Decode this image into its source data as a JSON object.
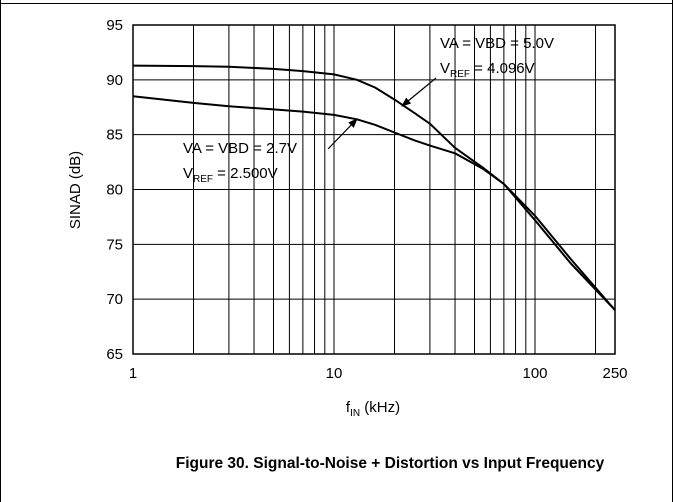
{
  "chart_data": {
    "type": "line",
    "caption": "Figure 30. Signal-to-Noise + Distortion vs Input Frequency",
    "ylabel": "SINAD (dB)",
    "xlabel": {
      "main": "f",
      "sub": "IN",
      "rest": " (kHz)"
    },
    "xscale": "log",
    "xlim": [
      1,
      250
    ],
    "xticks": [
      1,
      10,
      100,
      250
    ],
    "xgrid": [
      2,
      3,
      4,
      5,
      6,
      7,
      8,
      9,
      20,
      30,
      40,
      50,
      60,
      70,
      80,
      90,
      200
    ],
    "ylim": [
      65,
      95
    ],
    "yticks": [
      65,
      70,
      75,
      80,
      85,
      90,
      95
    ],
    "grid": true,
    "color": "#000000",
    "series": [
      {
        "x": [
          1,
          2,
          3,
          5,
          7,
          10,
          13,
          16,
          20,
          25,
          30,
          40,
          55,
          70,
          100,
          150,
          250
        ],
        "values": [
          91.3,
          91.25,
          91.2,
          91.0,
          90.8,
          90.5,
          90.0,
          89.3,
          88.2,
          87.0,
          86.0,
          83.8,
          82.0,
          80.5,
          77.2,
          73.3,
          69.0
        ]
      },
      {
        "x": [
          1,
          2,
          3,
          5,
          7,
          10,
          13,
          16,
          20,
          25,
          30,
          40,
          55,
          70,
          100,
          150,
          250
        ],
        "values": [
          88.5,
          87.9,
          87.6,
          87.3,
          87.1,
          86.8,
          86.4,
          85.9,
          85.2,
          84.5,
          84.0,
          83.3,
          81.9,
          80.5,
          77.6,
          73.7,
          69.0
        ]
      }
    ],
    "annotations": [
      {
        "line1": "VA = VBD = 5.0V",
        "line2": {
          "main": "V",
          "sub": "REF",
          "rest": " = 4.096V"
        }
      },
      {
        "line1": "VA = VBD = 2.7V",
        "line2": {
          "main": "V",
          "sub": "REF",
          "rest": " = 2.500V"
        }
      }
    ]
  }
}
